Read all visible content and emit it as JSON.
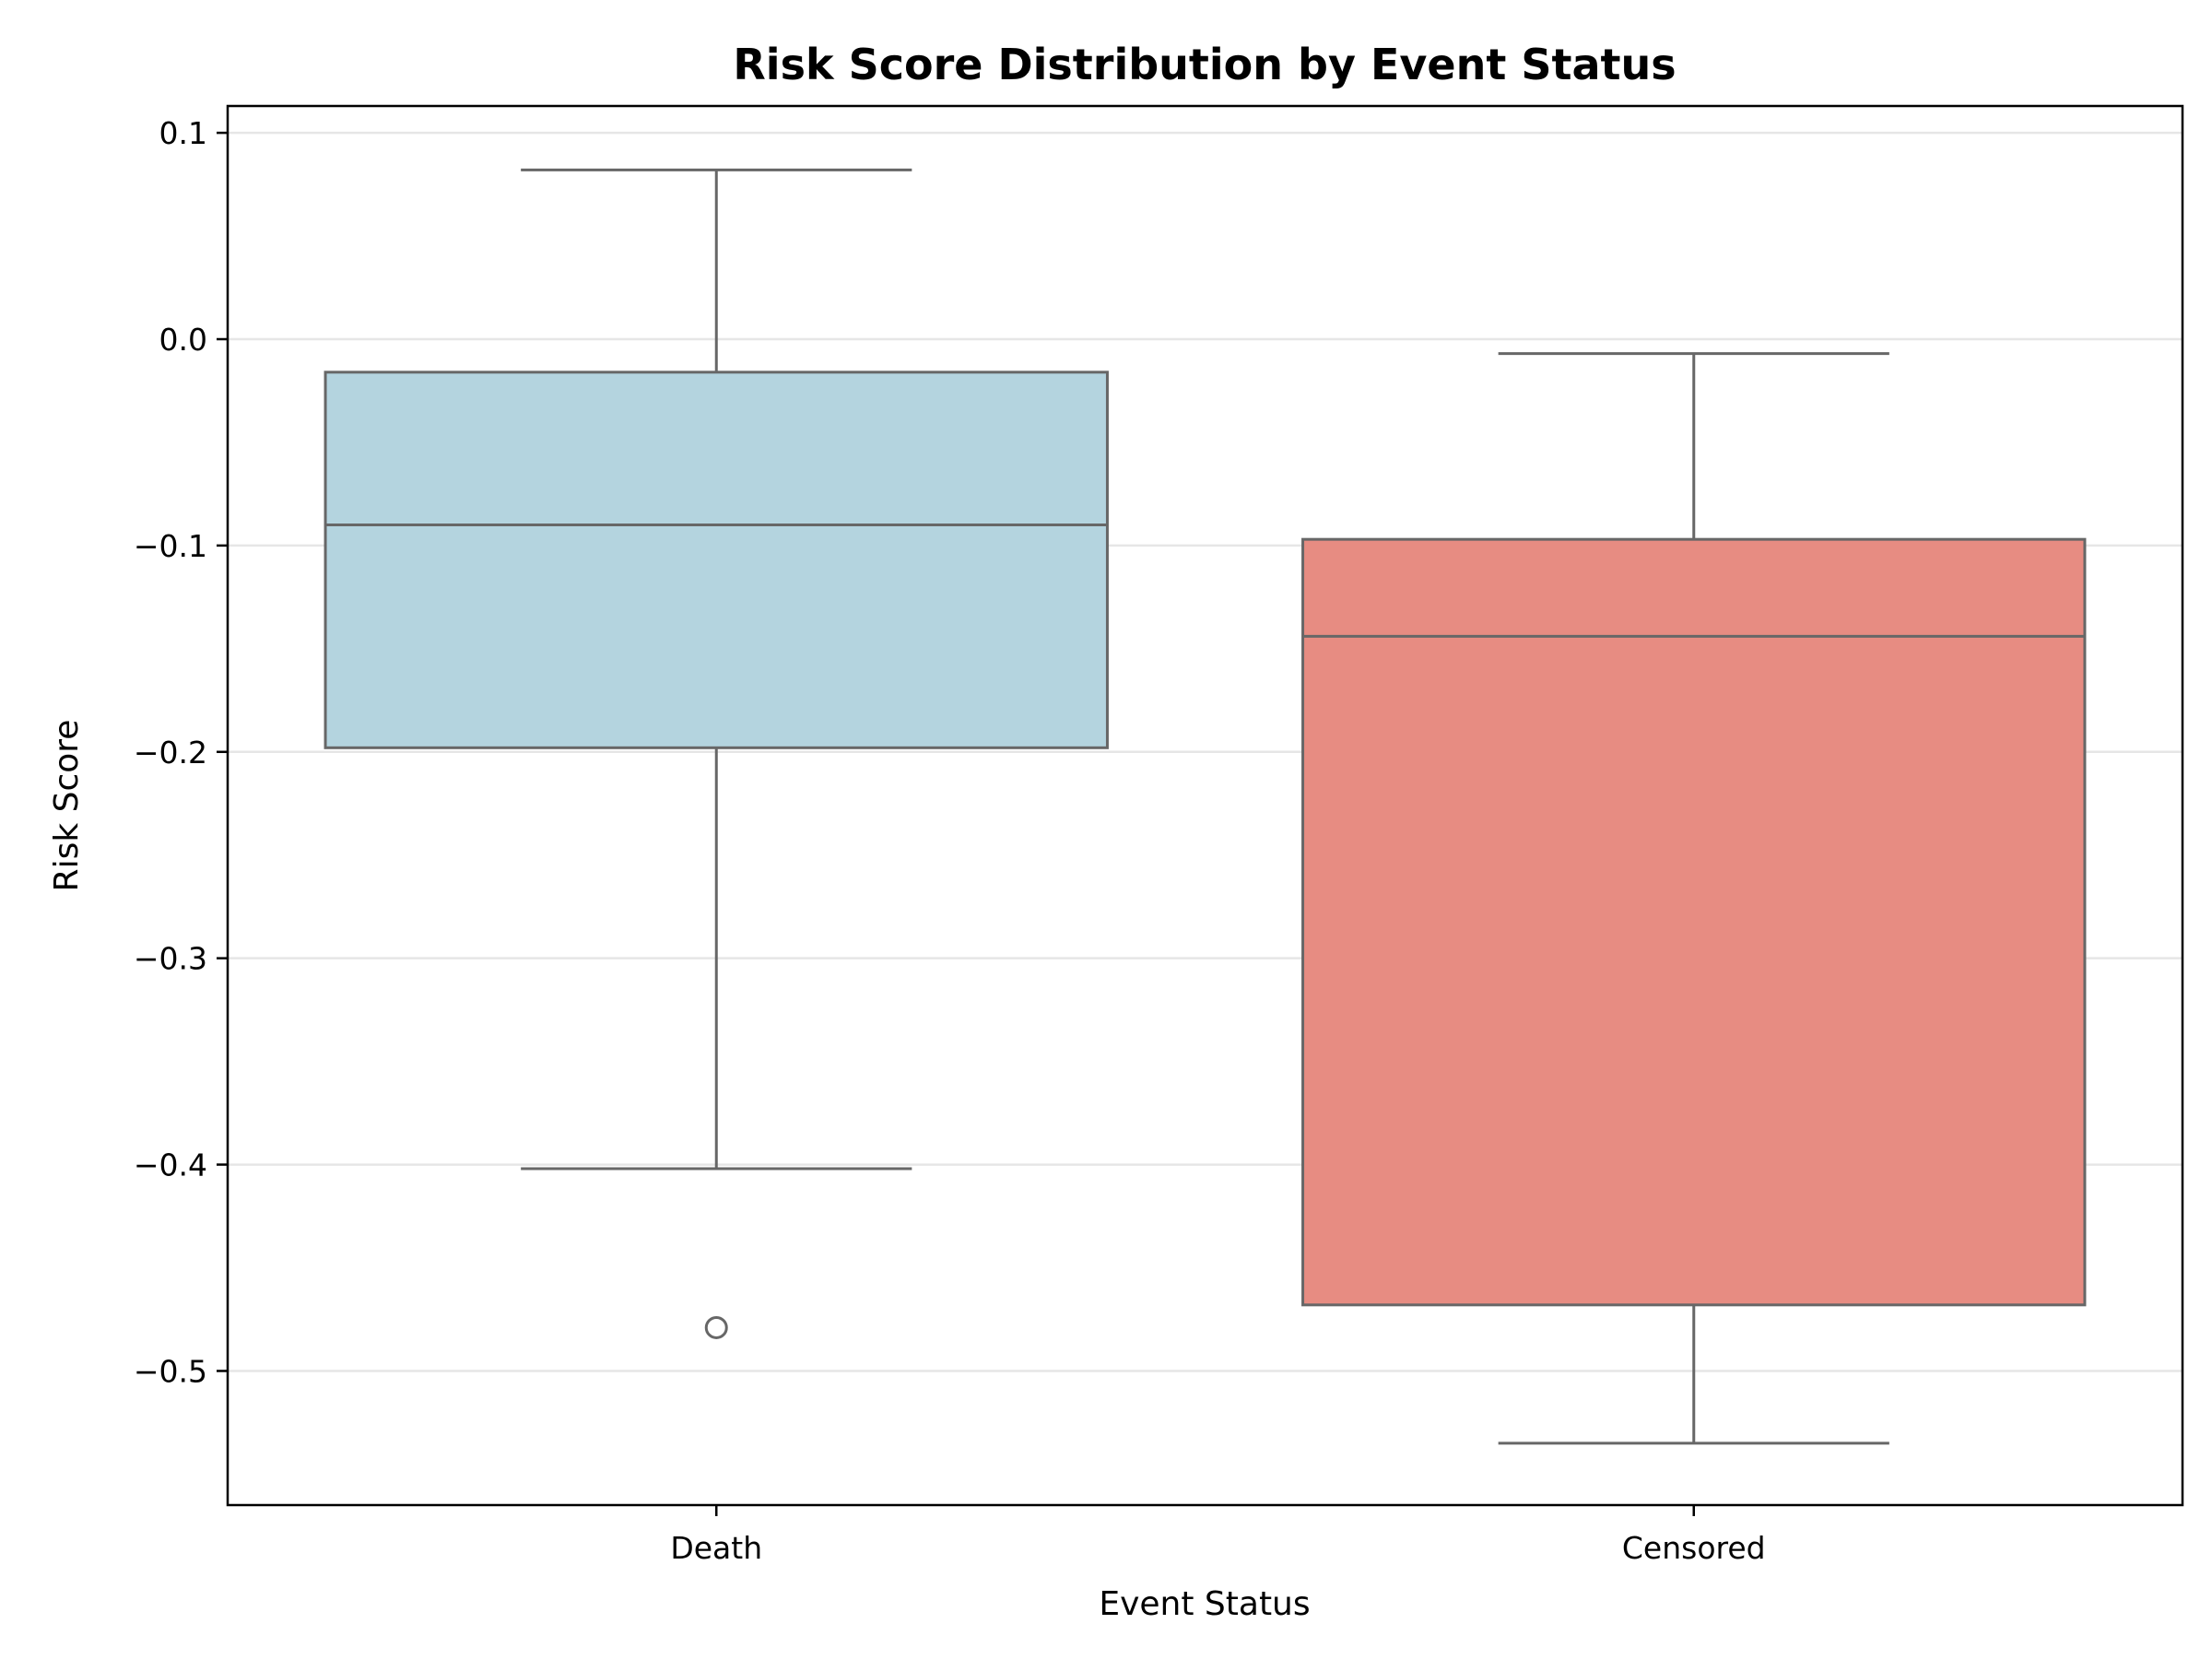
{
  "chart_data": {
    "type": "box",
    "title": "Risk Score Distribution by Event Status",
    "xlabel": "Event Status",
    "ylabel": "Risk Score",
    "ylim": [
      -0.565,
      0.113
    ],
    "yticks": [
      0.1,
      0.0,
      -0.1,
      -0.2,
      -0.3,
      -0.4,
      -0.5
    ],
    "ytick_labels": [
      "0.1",
      "0.0",
      "−0.1",
      "−0.2",
      "−0.3",
      "−0.4",
      "−0.5"
    ],
    "grid": "horizontal",
    "categories": [
      "Death",
      "Censored"
    ],
    "boxes": [
      {
        "category": "Death",
        "color": "#b4d4df",
        "whisker_low": -0.402,
        "q1": -0.198,
        "median": -0.09,
        "q3": -0.016,
        "whisker_high": 0.082,
        "outliers": [
          -0.479
        ]
      },
      {
        "category": "Censored",
        "color": "#e78c82",
        "whisker_low": -0.535,
        "q1": -0.468,
        "median": -0.144,
        "q3": -0.097,
        "whisker_high": -0.007,
        "outliers": []
      }
    ],
    "line_color": "#676767"
  }
}
